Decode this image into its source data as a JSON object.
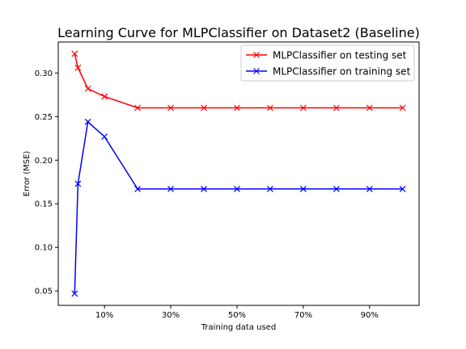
{
  "chart_data": {
    "type": "line",
    "title": "Learning Curve for MLPClassifier on Dataset2 (Baseline)",
    "xlabel": "Training data used",
    "ylabel": "Error (MSE)",
    "x": [
      1,
      2,
      5,
      10,
      20,
      30,
      40,
      50,
      60,
      70,
      80,
      90,
      100
    ],
    "xlim": [
      -3.95,
      104.95
    ],
    "ylim": [
      0.0335,
      0.3355
    ],
    "xticks": [
      10,
      30,
      50,
      70,
      90
    ],
    "xtick_labels": [
      "10%",
      "30%",
      "50%",
      "70%",
      "90%"
    ],
    "yticks": [
      0.05,
      0.1,
      0.15,
      0.2,
      0.25,
      0.3
    ],
    "ytick_labels": [
      "0.05",
      "0.10",
      "0.15",
      "0.20",
      "0.25",
      "0.30"
    ],
    "grid": false,
    "legend_position": "upper right",
    "series": [
      {
        "name": "MLPClassifier on testing set",
        "color": "#ff0000",
        "marker": "x",
        "values": [
          0.322,
          0.306,
          0.282,
          0.273,
          0.26,
          0.26,
          0.26,
          0.26,
          0.26,
          0.26,
          0.26,
          0.26,
          0.26
        ]
      },
      {
        "name": "MLPClassifier on training set",
        "color": "#0000ff",
        "marker": "x",
        "values": [
          0.047,
          0.173,
          0.244,
          0.227,
          0.167,
          0.167,
          0.167,
          0.167,
          0.167,
          0.167,
          0.167,
          0.167,
          0.167
        ]
      }
    ]
  }
}
